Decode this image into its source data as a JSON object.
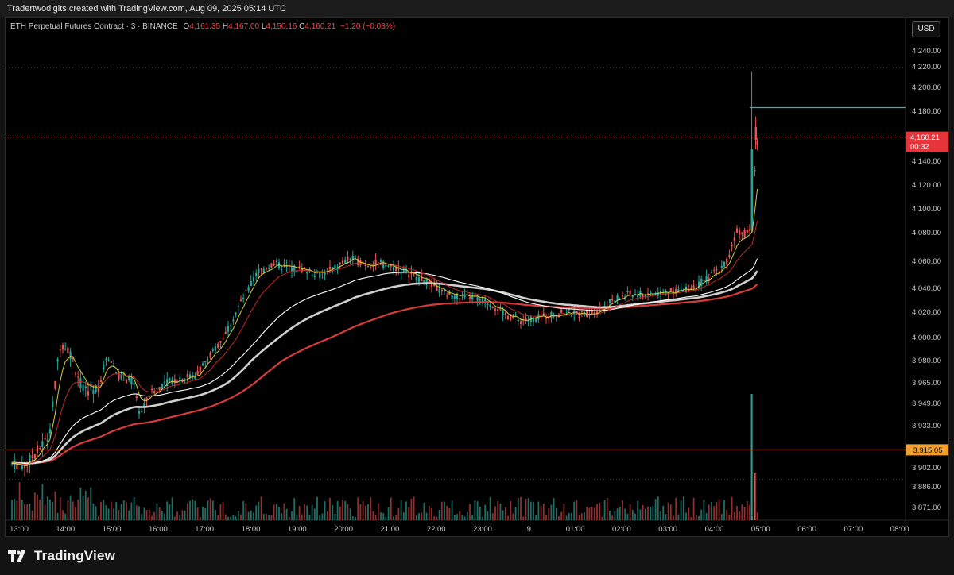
{
  "header": {
    "attribution": "Tradertwodigits created with TradingView.com, Aug 09, 2025 05:14 UTC"
  },
  "legend": {
    "symbol": "ETH Perpetual Futures Contract · 3 · BINANCE",
    "open_label": "O",
    "open": "4,161.35",
    "high_label": "H",
    "high": "4,167.00",
    "low_label": "L",
    "low": "4,150.16",
    "close_label": "C",
    "close": "4,160.21",
    "change": "−1.20 (−0.03%)"
  },
  "currency_button": "USD",
  "brand": {
    "name": "TradingView"
  },
  "colors": {
    "up": "#26a69a",
    "down": "#ef5350",
    "ema_fast": "#d4ce3a",
    "ema_mid": "#c2292b",
    "ema_white": "#ffffff",
    "ema_gray": "#cfcfcf",
    "ema_red_slow": "#d83b3b",
    "level_orange": "#f0a030",
    "level_cyan": "#22b6c8",
    "price_tag": "#e5353a"
  },
  "chart_data": {
    "type": "candlestick",
    "title": "",
    "y_ticks": [
      "4,240.00",
      "4,220.00",
      "4,200.00",
      "4,180.00",
      "4,160.00",
      "4,140.00",
      "4,120.00",
      "4,100.00",
      "4,080.00",
      "4,060.00",
      "4,040.00",
      "4,020.00",
      "4,000.00",
      "3,980.00",
      "3,965.00",
      "3,949.00",
      "3,933.00",
      "3,917.00",
      "3,902.00",
      "3,886.00",
      "3,871.00"
    ],
    "x_ticks": [
      "13:00",
      "14:00",
      "15:00",
      "16:00",
      "17:00",
      "18:00",
      "19:00",
      "20:00",
      "21:00",
      "22:00",
      "23:00",
      "9",
      "01:00",
      "02:00",
      "03:00",
      "04:00",
      "05:00",
      "06:00",
      "07:00",
      "08:00"
    ],
    "price_path": [
      [
        "13:00",
        3905
      ],
      [
        "13:20",
        3904
      ],
      [
        "13:50",
        3925
      ],
      [
        "14:05",
        3995
      ],
      [
        "14:15",
        3990
      ],
      [
        "14:35",
        3958
      ],
      [
        "14:55",
        3962
      ],
      [
        "15:05",
        3985
      ],
      [
        "15:20",
        3970
      ],
      [
        "15:40",
        3965
      ],
      [
        "15:48",
        3940
      ],
      [
        "16:00",
        3956
      ],
      [
        "16:20",
        3965
      ],
      [
        "16:40",
        3968
      ],
      [
        "17:00",
        3970
      ],
      [
        "17:20",
        3985
      ],
      [
        "17:40",
        4005
      ],
      [
        "18:00",
        4030
      ],
      [
        "18:20",
        4052
      ],
      [
        "18:40",
        4058
      ],
      [
        "19:00",
        4055
      ],
      [
        "19:20",
        4054
      ],
      [
        "19:40",
        4050
      ],
      [
        "20:00",
        4055
      ],
      [
        "20:20",
        4062
      ],
      [
        "20:40",
        4058
      ],
      [
        "21:00",
        4058
      ],
      [
        "21:20",
        4055
      ],
      [
        "21:40",
        4050
      ],
      [
        "22:00",
        4045
      ],
      [
        "22:20",
        4036
      ],
      [
        "22:40",
        4033
      ],
      [
        "23:00",
        4032
      ],
      [
        "23:20",
        4028
      ],
      [
        "23:40",
        4018
      ],
      [
        "00:00",
        4013
      ],
      [
        "00:20",
        4015
      ],
      [
        "00:40",
        4018
      ],
      [
        "01:00",
        4020
      ],
      [
        "01:20",
        4018
      ],
      [
        "01:40",
        4022
      ],
      [
        "02:00",
        4030
      ],
      [
        "02:20",
        4035
      ],
      [
        "02:40",
        4035
      ],
      [
        "03:00",
        4036
      ],
      [
        "03:20",
        4038
      ],
      [
        "03:40",
        4040
      ],
      [
        "04:00",
        4046
      ],
      [
        "04:20",
        4055
      ],
      [
        "04:30",
        4062
      ],
      [
        "04:40",
        4082
      ],
      [
        "04:50",
        4080
      ],
      [
        "05:00",
        4082
      ],
      [
        "05:05",
        4150
      ],
      [
        "05:08",
        4160.21
      ]
    ],
    "current_price": "4,160.21",
    "countdown": "00:32",
    "levels": [
      {
        "name": "orange-level",
        "value": "3,915.05"
      },
      {
        "name": "cyan-level",
        "value": 4183
      }
    ],
    "grid": false
  }
}
